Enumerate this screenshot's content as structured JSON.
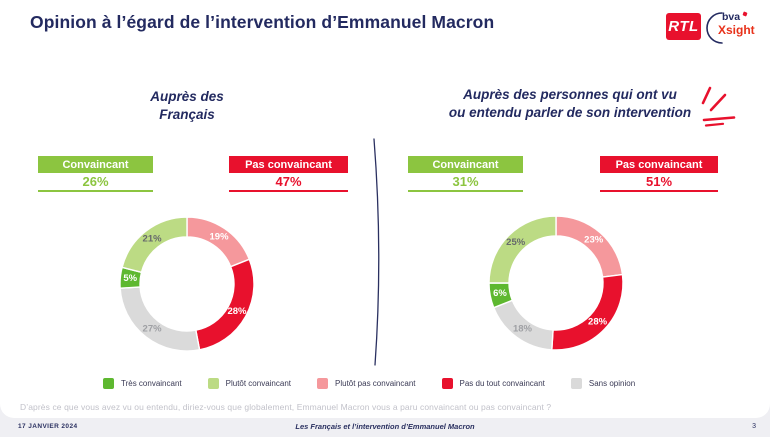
{
  "title": "Opinion à l’égard de l’intervention d’Emmanuel Macron",
  "logos": {
    "rtl": "RTL",
    "bva_line1": "bva",
    "bva_line2": "Xsight"
  },
  "panels": [
    {
      "heading": [
        "Auprès des",
        "Français"
      ],
      "convincing": {
        "label": "Convaincant",
        "value": "26%"
      },
      "not_convincing": {
        "label": "Pas convaincant",
        "value": "47%"
      }
    },
    {
      "heading": [
        "Auprès des personnes qui ont vu",
        "ou entendu parler de son intervention"
      ],
      "convincing": {
        "label": "Convaincant",
        "value": "31%"
      },
      "not_convincing": {
        "label": "Pas convaincant",
        "value": "51%"
      }
    }
  ],
  "chart_data": [
    {
      "type": "pie",
      "subtype": "donut",
      "title": "Auprès des Français",
      "categories": [
        "Plutôt pas convaincant",
        "Pas du tout convaincant",
        "Sans opinion",
        "Très convaincant",
        "Plutôt convaincant"
      ],
      "values": [
        19,
        28,
        27,
        5,
        21
      ],
      "unit": "%",
      "start_angle": "12 o'clock, clockwise",
      "colors": [
        "#F5989C",
        "#E8112D",
        "#DADADA",
        "#5EB830",
        "#BCDB84"
      ],
      "label_colors": [
        "#FFFFFF",
        "#FFFFFF",
        "#9FA0A4",
        "#FFFFFF",
        "#66696B"
      ],
      "summary": {
        "convaincant": 26,
        "pas_convaincant": 47
      }
    },
    {
      "type": "pie",
      "subtype": "donut",
      "title": "Auprès des personnes qui ont vu ou entendu parler de son intervention",
      "categories": [
        "Plutôt pas convaincant",
        "Pas du tout convaincant",
        "Sans opinion",
        "Très convaincant",
        "Plutôt convaincant"
      ],
      "values": [
        23,
        28,
        18,
        6,
        25
      ],
      "unit": "%",
      "start_angle": "12 o'clock, clockwise",
      "colors": [
        "#F5989C",
        "#E8112D",
        "#DADADA",
        "#5EB830",
        "#BCDB84"
      ],
      "label_colors": [
        "#FFFFFF",
        "#FFFFFF",
        "#9FA0A4",
        "#FFFFFF",
        "#66696B"
      ],
      "summary": {
        "convaincant": 31,
        "pas_convaincant": 51
      }
    }
  ],
  "legend": [
    {
      "label": "Très convaincant",
      "color": "#5EB830"
    },
    {
      "label": "Plutôt convaincant",
      "color": "#BCDB84"
    },
    {
      "label": "Plutôt pas convaincant",
      "color": "#F5989C"
    },
    {
      "label": "Pas du tout convaincant",
      "color": "#E8112D"
    },
    {
      "label": "Sans opinion",
      "color": "#DADADA"
    }
  ],
  "question": "D’après ce que vous avez vu ou entendu, diriez-vous que globalement, Emmanuel Macron vous a paru convaincant ou pas convaincant ?",
  "footer": {
    "date": "17 JANVIER 2024",
    "report_title": "Les Français et l’intervention d’Emmanuel Macron",
    "page": "3"
  },
  "accent_colors": {
    "navy": "#232A60",
    "green": "#8CC540",
    "red": "#E8112D",
    "footer_bg": "#EFEFF3"
  }
}
